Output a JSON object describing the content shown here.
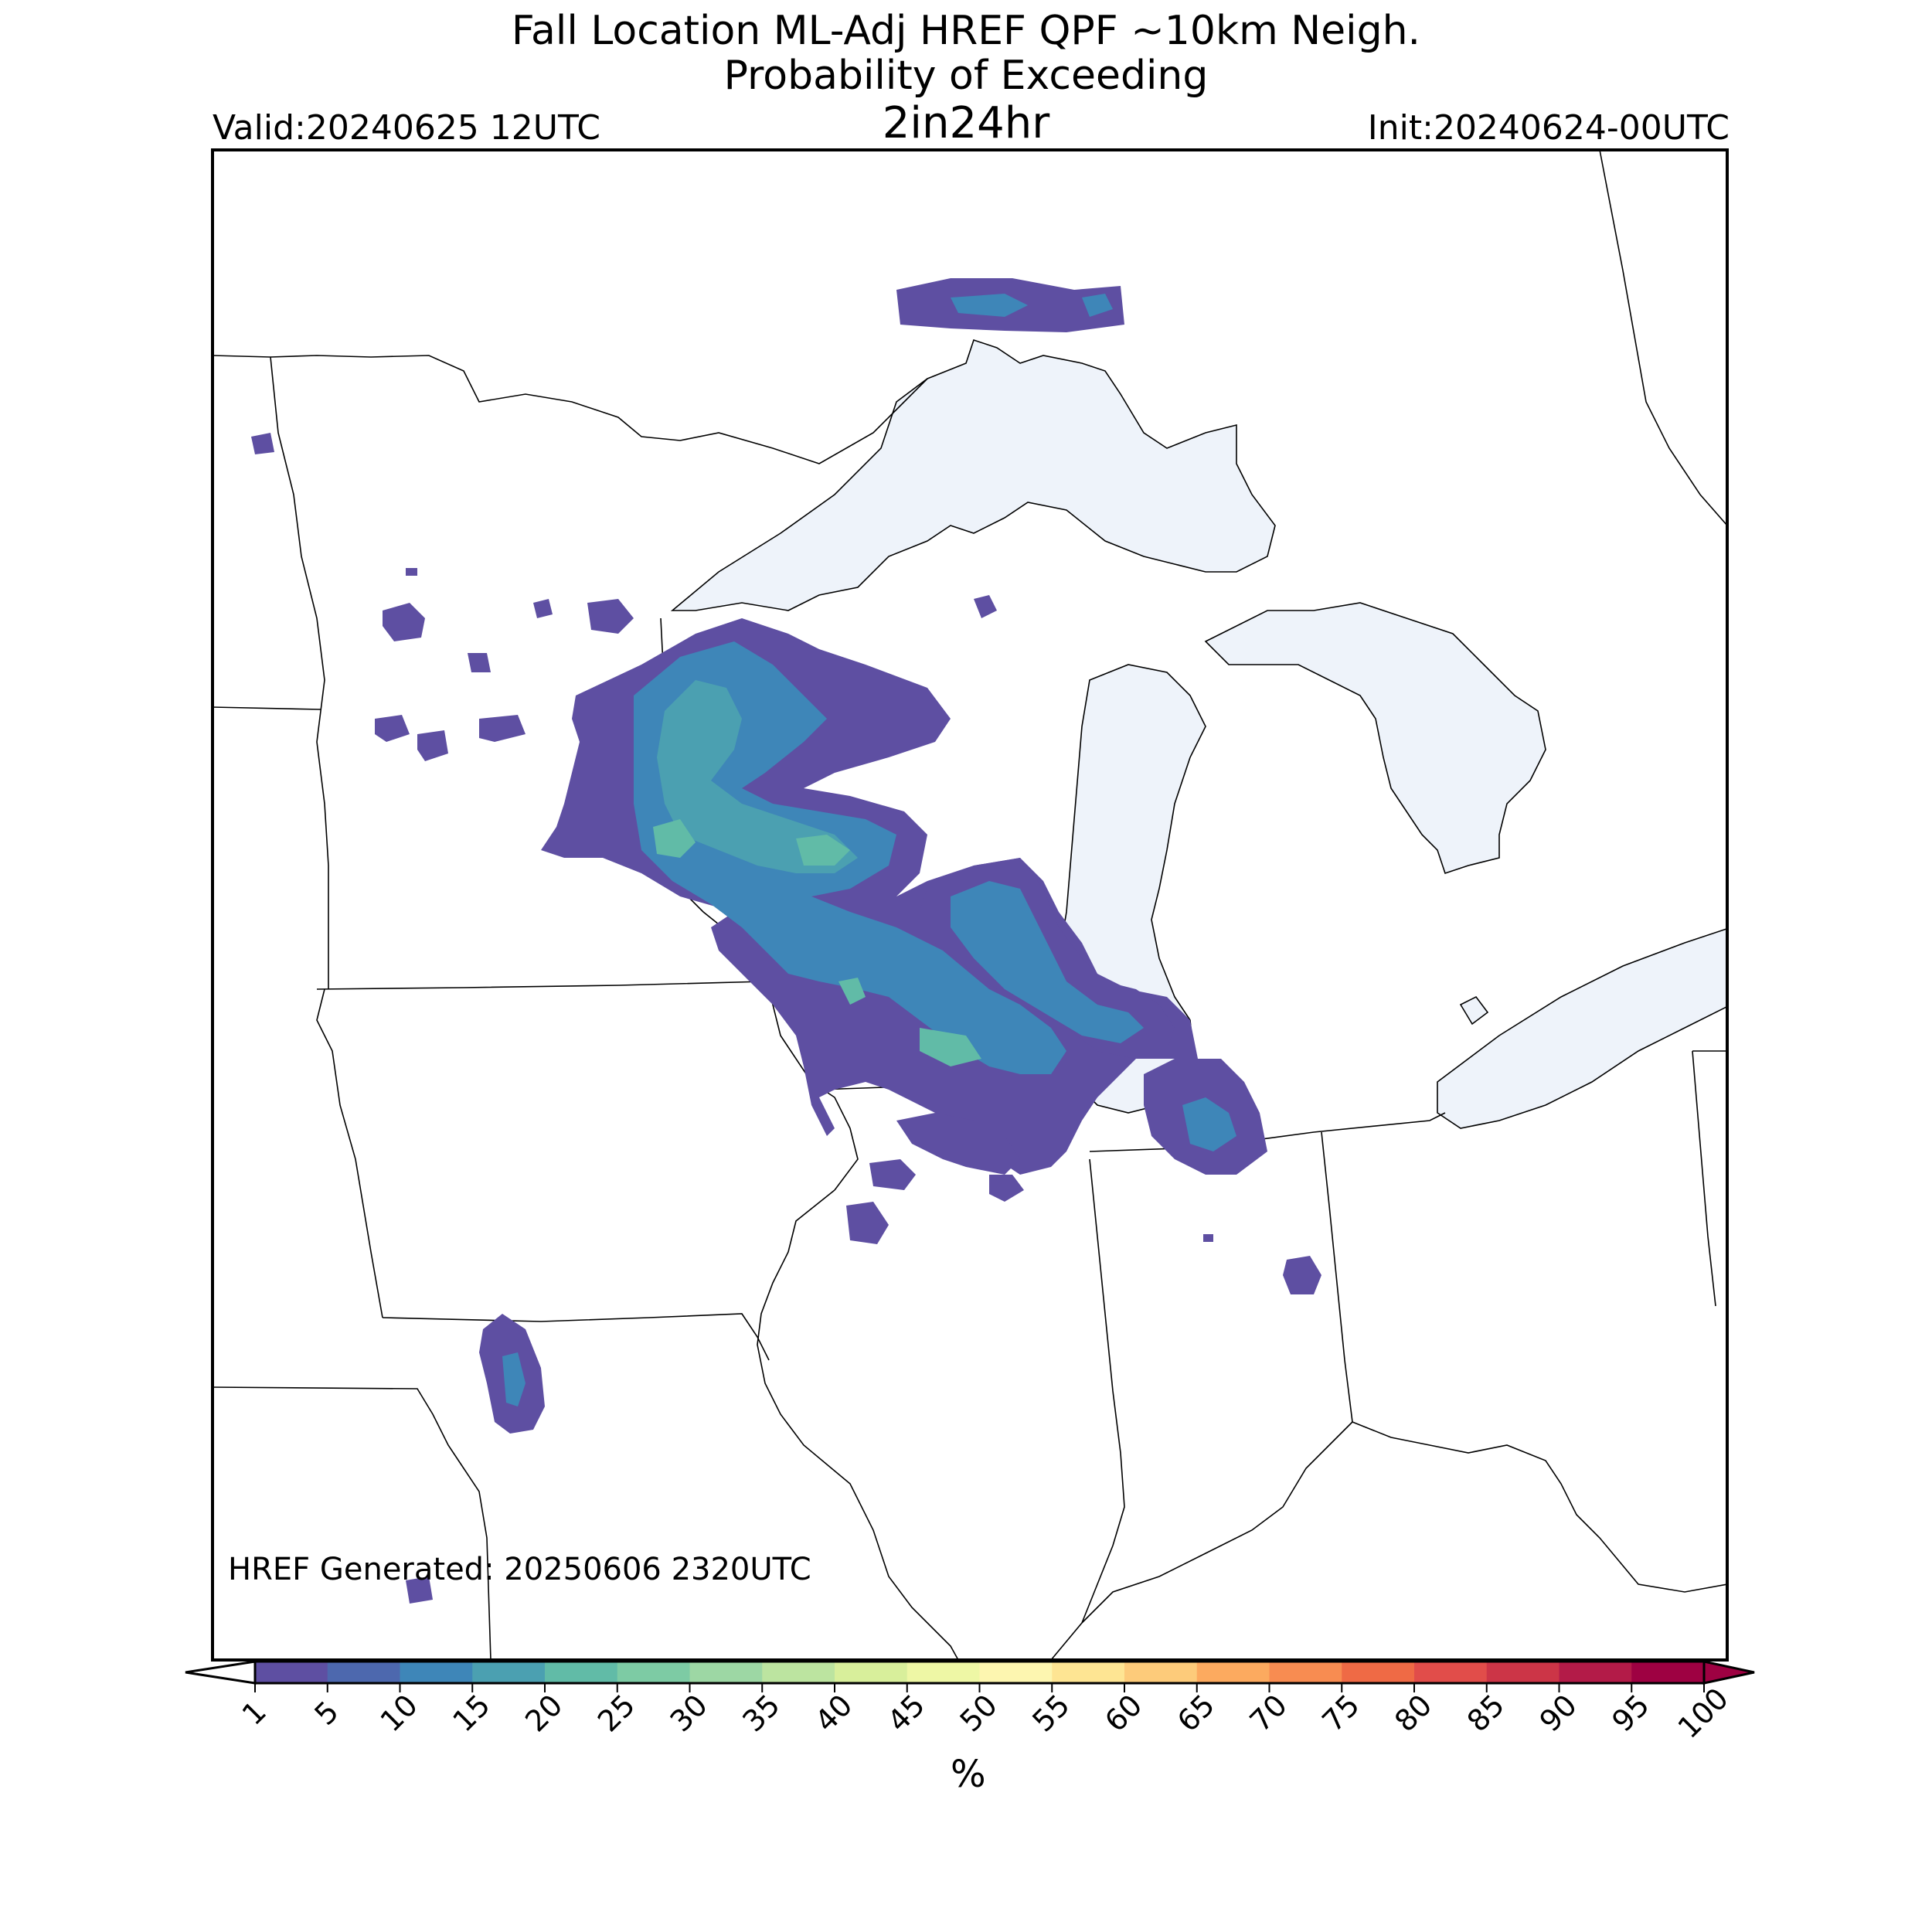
{
  "header": {
    "title_line1": "Fall Location ML-Adj HREF QPF ~10km Neigh.",
    "title_line2": "Probability of Exceeding",
    "title_line3": "2in24hr",
    "valid": "Valid:20240625 12UTC",
    "init": "Init:20240624-00UTC"
  },
  "footer": {
    "generated": "HREF Generated: 20250606 2320UTC"
  },
  "colorbar": {
    "unit": "%",
    "ticks": [
      "1",
      "5",
      "10",
      "15",
      "20",
      "25",
      "30",
      "35",
      "40",
      "45",
      "50",
      "55",
      "60",
      "65",
      "70",
      "75",
      "80",
      "85",
      "90",
      "95",
      "100"
    ],
    "colors": [
      "#5e4fa2",
      "#4d68ae",
      "#3e86b8",
      "#4ba0b1",
      "#61bba7",
      "#7dcba4",
      "#9dd7a4",
      "#bce4a0",
      "#d8ef9b",
      "#eef7a5",
      "#fdf6b0",
      "#fee593",
      "#fdcb7a",
      "#fcaa5f",
      "#f88c51",
      "#ef6a45",
      "#e14d4a",
      "#cc3547",
      "#b31b48",
      "#9e0142"
    ],
    "under_color": "#ffffff",
    "over_color": "#9e0142"
  },
  "map": {
    "region": "Upper Midwest / Great Lakes",
    "lake_color": "#eef3fa",
    "border_color": "#000000"
  }
}
